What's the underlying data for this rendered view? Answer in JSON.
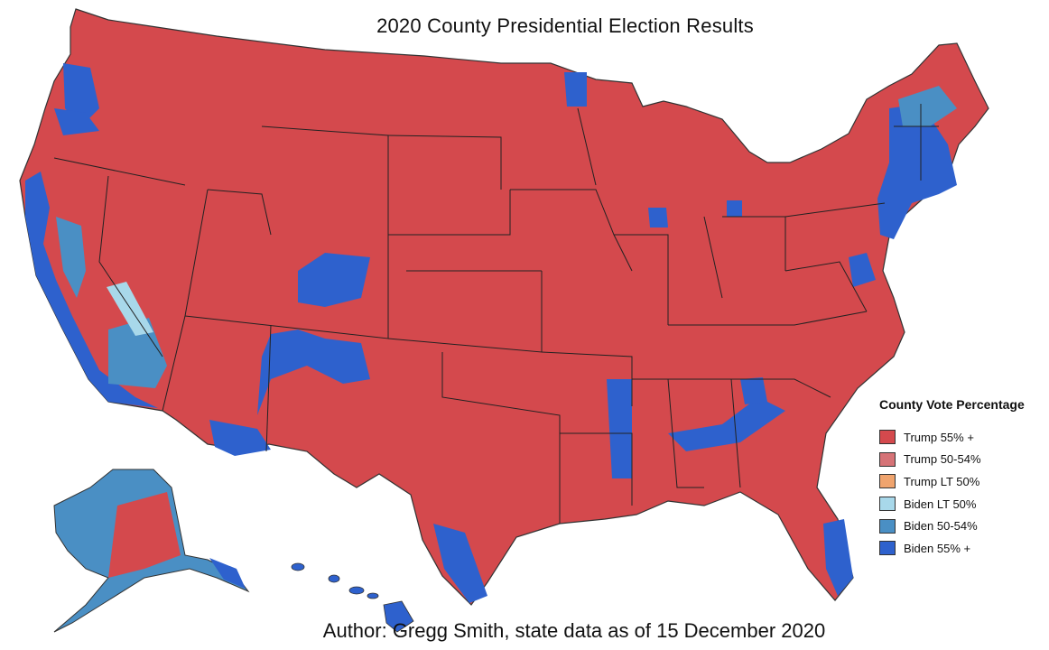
{
  "title": "2020 County Presidential Election Results",
  "credit": "Author: Gregg Smith, state data as of 15 December 2020",
  "legend": {
    "title": "County Vote Percentage",
    "items": [
      {
        "label": "Trump 55% +",
        "color": "#d4494d"
      },
      {
        "label": "Trump 50-54%",
        "color": "#d67377"
      },
      {
        "label": "Trump LT 50%",
        "color": "#f0a46e"
      },
      {
        "label": "Biden LT 50%",
        "color": "#a8d8ea"
      },
      {
        "label": "Biden 50-54%",
        "color": "#4a8fc4"
      },
      {
        "label": "Biden 55% +",
        "color": "#2e61cd"
      }
    ]
  }
}
